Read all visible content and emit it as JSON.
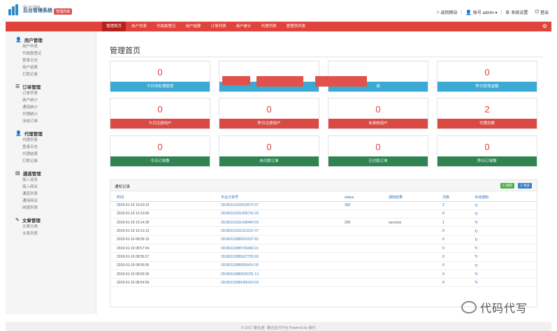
{
  "header": {
    "logo_sub": "版小支付系统",
    "logo_main": "后台管理系统",
    "badge": "管理商城",
    "links": [
      {
        "icon": "home-icon",
        "label": "返回网站"
      },
      {
        "icon": "user-icon",
        "label": "账号 admin ▾"
      },
      {
        "icon": "gear-icon",
        "label": "系统设置"
      },
      {
        "icon": "power-icon",
        "label": "登出"
      }
    ]
  },
  "nav": {
    "items": [
      "管理首页",
      "用户列表",
      "代收款登记",
      "用户结算",
      "订单列表",
      "商户统计",
      "代理列表",
      "管理员列表"
    ],
    "active_index": 0
  },
  "sidebar": {
    "groups": [
      {
        "icon": "user-icon",
        "title": "用户管理",
        "links": [
          "用户列表",
          "代收款登记",
          "登录日志",
          "用户结算",
          "打款记录"
        ]
      },
      {
        "icon": "list-icon",
        "title": "订单管理",
        "links": [
          "订单列表",
          "商户统计",
          "通道统计",
          "代理统计",
          "冻结订单"
        ]
      },
      {
        "icon": "user-icon",
        "title": "代理管理",
        "links": [
          "代理列表",
          "登录日志",
          "代理结算",
          "打款记录"
        ]
      },
      {
        "icon": "book-icon",
        "title": "通道管理",
        "links": [
          "接入信息",
          "接入网关",
          "通道列表",
          "通用网关",
          "网银列表"
        ]
      },
      {
        "icon": "edit-icon",
        "title": "文章管理",
        "links": [
          "文章分类",
          "文章列表"
        ]
      }
    ]
  },
  "main": {
    "title": "管理首页",
    "cards": [
      {
        "value": "0",
        "label": "今日待处理提现",
        "color": "blue"
      },
      {
        "value": "",
        "label": "",
        "color": "blue"
      },
      {
        "value": "",
        "label": "成",
        "color": "blue"
      },
      {
        "value": "0",
        "label": "昨日提现金额",
        "color": "blue"
      },
      {
        "value": "0",
        "label": "今日注册用户",
        "color": "red"
      },
      {
        "value": "0",
        "label": "昨日注册用户",
        "color": "red"
      },
      {
        "value": "0",
        "label": "未审核用户",
        "color": "red"
      },
      {
        "value": "2",
        "label": "代理总数",
        "color": "red"
      },
      {
        "value": "0",
        "label": "今日订单数",
        "color": "green"
      },
      {
        "value": "0",
        "label": "未付款订单",
        "color": "green"
      },
      {
        "value": "0",
        "label": "已付款订单",
        "color": "green"
      },
      {
        "value": "0",
        "label": "昨日订单数",
        "color": "green"
      }
    ],
    "panel": {
      "title": "通知记录",
      "btn_refresh": "刷新",
      "btn_more": "更多",
      "columns": [
        "时间",
        "平台订单号",
        "status",
        "通知结果",
        "次数",
        "手动通知"
      ],
      "rows": [
        [
          "2018-01-19 10:20:14",
          "20180119102014574 37",
          "302",
          "",
          "2",
          "↻"
        ],
        [
          "2018-01-19 10:19:00",
          "20180119101900743 29",
          "",
          "",
          "0",
          "↻"
        ],
        [
          "2018-01-19 10:14:39",
          "20180119101439494 59",
          "200",
          "success",
          "1",
          "↻"
        ],
        [
          "2018-01-19 10:13:13",
          "20180119101313151 47",
          "",
          "",
          "0",
          "↻"
        ],
        [
          "2018-01-19 08:58:10",
          "20180119085810197 82",
          "",
          "",
          "0",
          "↻"
        ],
        [
          "2018-01-19 08:57:04",
          "20180119085704466 01",
          "",
          "",
          "0",
          "↻"
        ],
        [
          "2018-01-19 08:56:27",
          "20180119085627755 69",
          "",
          "",
          "0",
          "↻"
        ],
        [
          "2018-01-19 08:55:56",
          "20180119085556414 30",
          "",
          "",
          "0",
          "↻"
        ],
        [
          "2018-01-19 08:55:26",
          "20180119085526781 13",
          "",
          "",
          "0",
          "↻"
        ],
        [
          "2018-01-19 08:54:56",
          "20180119085456419 69",
          "",
          "",
          "0",
          "↻"
        ]
      ]
    }
  },
  "footer": "© 2017  聚合通 - 聚合支付平台 Powered by 碳付",
  "watermark": "代码代写"
}
